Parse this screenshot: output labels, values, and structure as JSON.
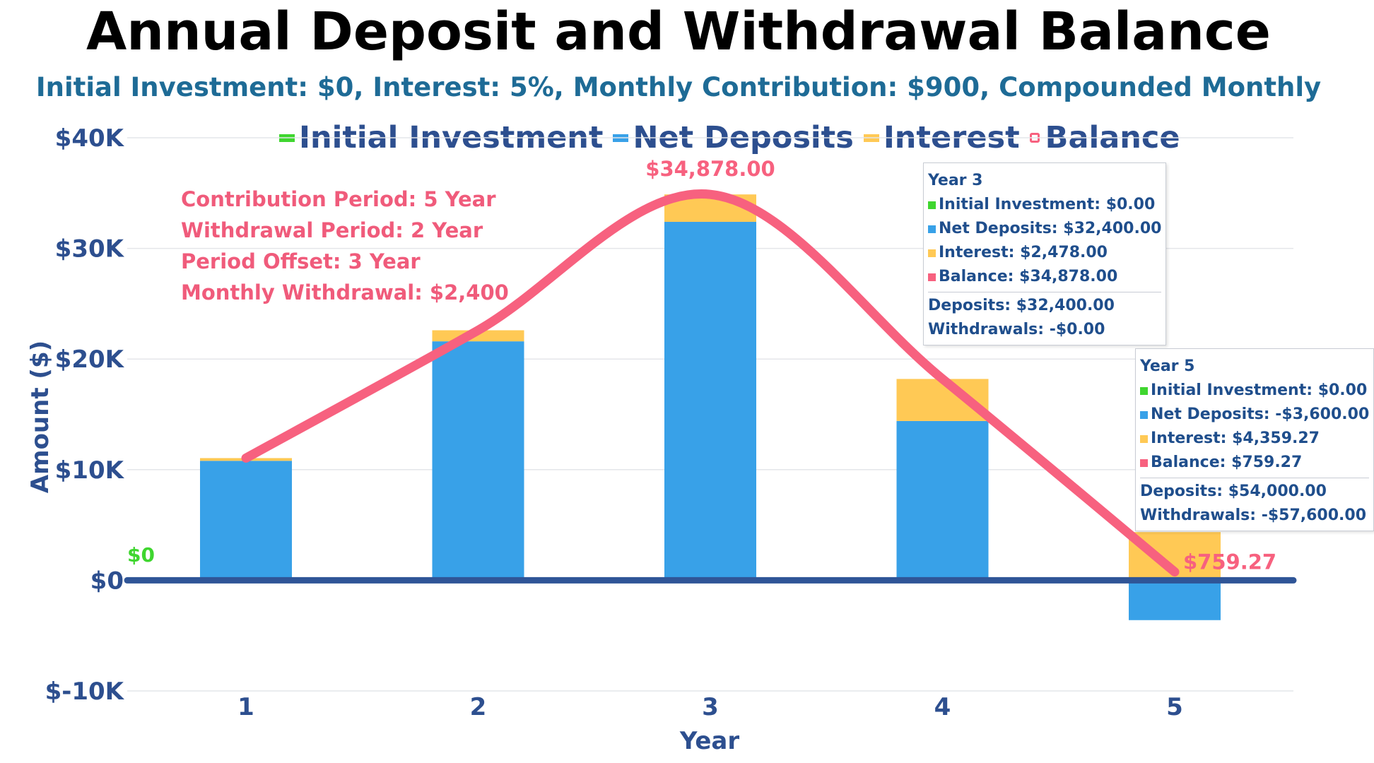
{
  "chart_data": {
    "type": "bar",
    "title": "Annual Deposit and Withdrawal Balance",
    "subtitle": "Initial Investment: $0, Interest: 5%, Monthly Contribution: $900, Compounded Monthly",
    "xlabel": "Year",
    "ylabel": "Amount ($)",
    "categories": [
      "1",
      "2",
      "3",
      "4",
      "5"
    ],
    "ylim": [
      -10000,
      40000
    ],
    "yticks": [
      {
        "value": 40000,
        "label": "$40K"
      },
      {
        "value": 30000,
        "label": "$30K"
      },
      {
        "value": 20000,
        "label": "$20K"
      },
      {
        "value": 10000,
        "label": "$10K"
      },
      {
        "value": 0,
        "label": "$0"
      },
      {
        "value": -10000,
        "label": "$-10K"
      }
    ],
    "stacked": true,
    "grid": true,
    "legend_position": "top",
    "series": [
      {
        "name": "Initial Investment",
        "type": "bar",
        "color": "#3fd62f",
        "values": [
          0,
          0,
          0,
          0,
          0
        ]
      },
      {
        "name": "Net Deposits",
        "type": "bar",
        "color": "#38a1e8",
        "values": [
          10800,
          21600,
          32400,
          14400,
          -3600
        ]
      },
      {
        "name": "Interest",
        "type": "bar",
        "color": "#ffc955",
        "values": [
          247,
          1000,
          2478,
          3800,
          4359.27
        ]
      },
      {
        "name": "Balance",
        "type": "line",
        "color": "#f7617f",
        "values": [
          11047,
          22600,
          34878,
          18200,
          759.27
        ]
      }
    ],
    "data_labels": [
      {
        "text": "$0",
        "color": "#3fd62f"
      },
      {
        "text": "$34,878.00",
        "color": "#f7617f"
      },
      {
        "text": "$759.27",
        "color": "#f7617f"
      }
    ],
    "annotations": [
      "Contribution Period: 5 Year",
      "Withdrawal Period: 2 Year",
      "Period Offset: 3 Year",
      "Monthly Withdrawal: $2,400"
    ],
    "tooltips": [
      {
        "title": "Year 3",
        "rows": [
          {
            "label": "Initial Investment: $0.00",
            "color": "#3fd62f"
          },
          {
            "label": "Net Deposits: $32,400.00",
            "color": "#38a1e8"
          },
          {
            "label": "Interest: $2,478.00",
            "color": "#ffc955"
          },
          {
            "label": "Balance: $34,878.00",
            "color": "#f7617f"
          }
        ],
        "footer": [
          "Deposits: $32,400.00",
          "Withdrawals: -$0.00"
        ]
      },
      {
        "title": "Year 5",
        "rows": [
          {
            "label": "Initial Investment: $0.00",
            "color": "#3fd62f"
          },
          {
            "label": "Net Deposits: -$3,600.00",
            "color": "#38a1e8"
          },
          {
            "label": "Interest: $4,359.27",
            "color": "#ffc955"
          },
          {
            "label": "Balance: $759.27",
            "color": "#f7617f"
          }
        ],
        "footer": [
          "Deposits: $54,000.00",
          "Withdrawals: -$57,600.00"
        ]
      }
    ]
  }
}
